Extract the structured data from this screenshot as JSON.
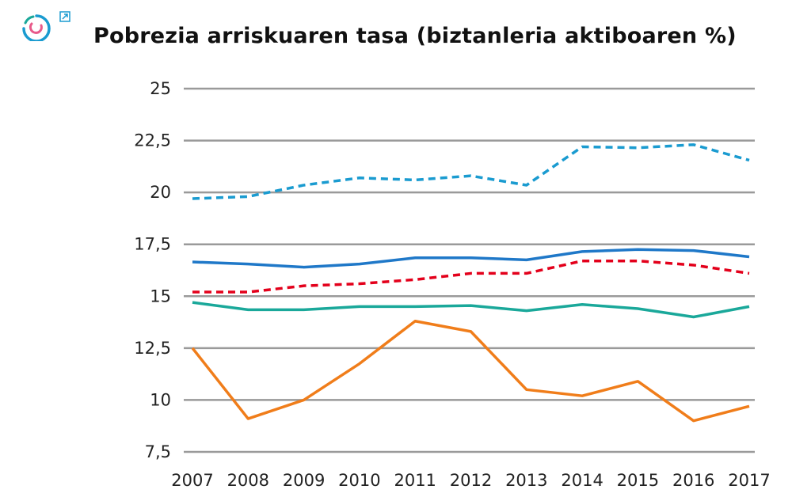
{
  "title": "Pobrezia arriskuaren tasa (biztanleria aktiboaren %)",
  "chart_data": {
    "type": "line",
    "title": "Pobrezia arriskuaren tasa (biztanleria aktiboaren %)",
    "xlabel": "",
    "ylabel": "",
    "x": [
      2007,
      2008,
      2009,
      2010,
      2011,
      2012,
      2013,
      2014,
      2015,
      2016,
      2017
    ],
    "ylim": [
      7.5,
      25
    ],
    "yticks": [
      7.5,
      10,
      12.5,
      15,
      17.5,
      20,
      22.5,
      25
    ],
    "ytick_labels": [
      "7,5",
      "10",
      "12,5",
      "15",
      "17,5",
      "20",
      "22,5",
      "25"
    ],
    "grid": "horizontal",
    "series": [
      {
        "color": "#1a9bd0",
        "style": "dashed",
        "values": [
          19.7,
          19.8,
          20.35,
          20.7,
          20.6,
          20.8,
          20.35,
          22.2,
          22.15,
          22.3,
          21.55
        ]
      },
      {
        "color": "#1f78c8",
        "style": "solid",
        "values": [
          16.65,
          16.55,
          16.4,
          16.55,
          16.85,
          16.85,
          16.75,
          17.15,
          17.25,
          17.2,
          16.9
        ]
      },
      {
        "color": "#e3001b",
        "style": "dashed",
        "values": [
          15.2,
          15.2,
          15.5,
          15.6,
          15.8,
          16.1,
          16.1,
          16.7,
          16.7,
          16.5,
          16.1
        ]
      },
      {
        "color": "#1aa89a",
        "style": "solid",
        "values": [
          14.7,
          14.35,
          14.35,
          14.5,
          14.5,
          14.55,
          14.3,
          14.6,
          14.4,
          14.0,
          14.5
        ]
      },
      {
        "color": "#f07d1a",
        "style": "solid",
        "values": [
          12.5,
          9.1,
          10.0,
          11.75,
          13.8,
          13.3,
          10.5,
          10.2,
          10.9,
          9.0,
          9.7
        ]
      }
    ]
  },
  "icons": {
    "logo": "circular-logo-icon",
    "external": "external-link-icon"
  }
}
